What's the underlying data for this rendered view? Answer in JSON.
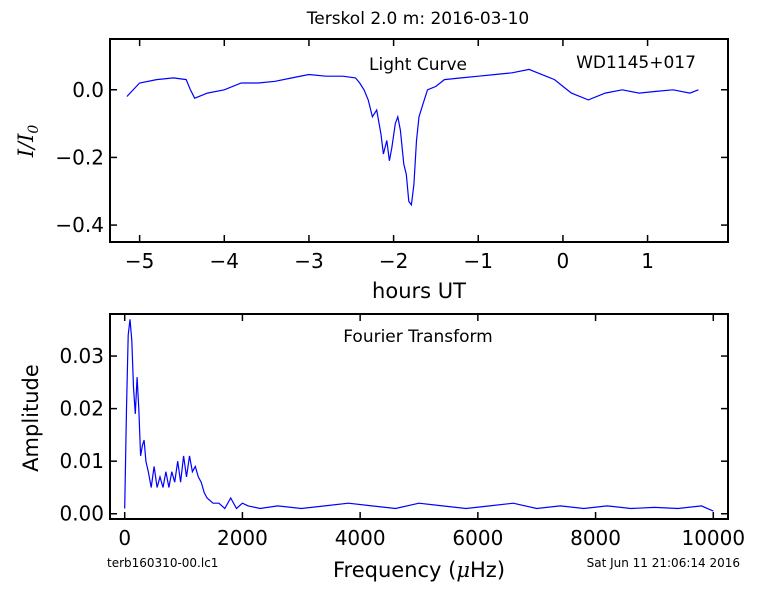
{
  "figure": {
    "title": "Terskol 2.0 m:  2016-03-10",
    "footer_left": "terb160310-00.lc1",
    "footer_right": "Sat Jun 11 21:06:14 2016"
  },
  "chart_data": [
    {
      "type": "line",
      "title": "Light Curve",
      "annotation": "WD1145+017",
      "xlabel": "hours UT",
      "ylabel_main": "I/I",
      "ylabel_sub": "0",
      "xlim": [
        -5.35,
        1.95
      ],
      "ylim": [
        -0.45,
        0.15
      ],
      "xticks": [
        -5,
        -4,
        -3,
        -2,
        -1,
        0,
        1
      ],
      "xtick_labels": [
        "−5",
        "−4",
        "−3",
        "−2",
        "−1",
        "0",
        "1"
      ],
      "yticks": [
        0.0,
        -0.2,
        -0.4
      ],
      "ytick_labels": [
        "0.0",
        "−0.2",
        "−0.4"
      ],
      "grid": false,
      "color": "#0000ff",
      "x": [
        -5.15,
        -5.0,
        -4.8,
        -4.6,
        -4.45,
        -4.4,
        -4.35,
        -4.2,
        -4.0,
        -3.8,
        -3.6,
        -3.4,
        -3.2,
        -3.0,
        -2.8,
        -2.6,
        -2.45,
        -2.4,
        -2.35,
        -2.3,
        -2.25,
        -2.2,
        -2.15,
        -2.12,
        -2.08,
        -2.05,
        -2.02,
        -1.98,
        -1.95,
        -1.92,
        -1.88,
        -1.85,
        -1.82,
        -1.79,
        -1.76,
        -1.73,
        -1.7,
        -1.65,
        -1.6,
        -1.5,
        -1.4,
        -1.2,
        -1.0,
        -0.8,
        -0.6,
        -0.4,
        -0.3,
        -0.2,
        -0.1,
        0.0,
        0.1,
        0.3,
        0.5,
        0.7,
        0.9,
        1.1,
        1.3,
        1.5,
        1.6
      ],
      "y": [
        -0.02,
        0.02,
        0.03,
        0.035,
        0.03,
        0.0,
        -0.025,
        -0.01,
        0.0,
        0.02,
        0.02,
        0.025,
        0.035,
        0.045,
        0.04,
        0.04,
        0.035,
        0.02,
        0.0,
        -0.03,
        -0.08,
        -0.06,
        -0.13,
        -0.19,
        -0.15,
        -0.21,
        -0.17,
        -0.1,
        -0.08,
        -0.12,
        -0.22,
        -0.25,
        -0.33,
        -0.34,
        -0.28,
        -0.15,
        -0.08,
        -0.04,
        0.0,
        0.01,
        0.03,
        0.035,
        0.04,
        0.045,
        0.05,
        0.06,
        0.05,
        0.04,
        0.03,
        0.01,
        -0.01,
        -0.03,
        -0.01,
        0.0,
        -0.01,
        -0.005,
        0.0,
        -0.01,
        0.0
      ]
    },
    {
      "type": "line",
      "title": "Fourier Transform",
      "xlabel_main": "Frequency (",
      "xlabel_mu": "μ",
      "xlabel_end": "Hz)",
      "ylabel": "Amplitude",
      "xlim": [
        -250,
        10250
      ],
      "ylim": [
        -0.001,
        0.038
      ],
      "xticks": [
        0,
        2000,
        4000,
        6000,
        8000,
        10000
      ],
      "xtick_labels": [
        "0",
        "2000",
        "4000",
        "6000",
        "8000",
        "10000"
      ],
      "yticks": [
        0.0,
        0.01,
        0.02,
        0.03
      ],
      "ytick_labels": [
        "0.00",
        "0.01",
        "0.02",
        "0.03"
      ],
      "grid": false,
      "color": "#0000ff",
      "x": [
        0,
        30,
        60,
        90,
        120,
        150,
        180,
        210,
        240,
        270,
        300,
        330,
        360,
        400,
        450,
        500,
        550,
        600,
        650,
        700,
        750,
        800,
        850,
        900,
        950,
        1000,
        1050,
        1100,
        1150,
        1200,
        1250,
        1300,
        1350,
        1400,
        1500,
        1600,
        1700,
        1800,
        1900,
        2000,
        2100,
        2300,
        2600,
        3000,
        3400,
        3800,
        4200,
        4600,
        5000,
        5400,
        5800,
        6200,
        6600,
        7000,
        7400,
        7800,
        8200,
        8600,
        9000,
        9400,
        9800,
        10000
      ],
      "y": [
        0.001,
        0.02,
        0.034,
        0.037,
        0.033,
        0.024,
        0.019,
        0.026,
        0.02,
        0.011,
        0.013,
        0.014,
        0.01,
        0.008,
        0.005,
        0.009,
        0.005,
        0.007,
        0.005,
        0.008,
        0.005,
        0.008,
        0.006,
        0.01,
        0.006,
        0.011,
        0.007,
        0.011,
        0.008,
        0.009,
        0.007,
        0.006,
        0.004,
        0.003,
        0.002,
        0.002,
        0.001,
        0.003,
        0.001,
        0.002,
        0.0015,
        0.001,
        0.0015,
        0.001,
        0.0015,
        0.002,
        0.0015,
        0.001,
        0.002,
        0.0015,
        0.001,
        0.0015,
        0.002,
        0.001,
        0.0015,
        0.001,
        0.0015,
        0.001,
        0.0012,
        0.001,
        0.0015,
        0.0005
      ]
    }
  ]
}
